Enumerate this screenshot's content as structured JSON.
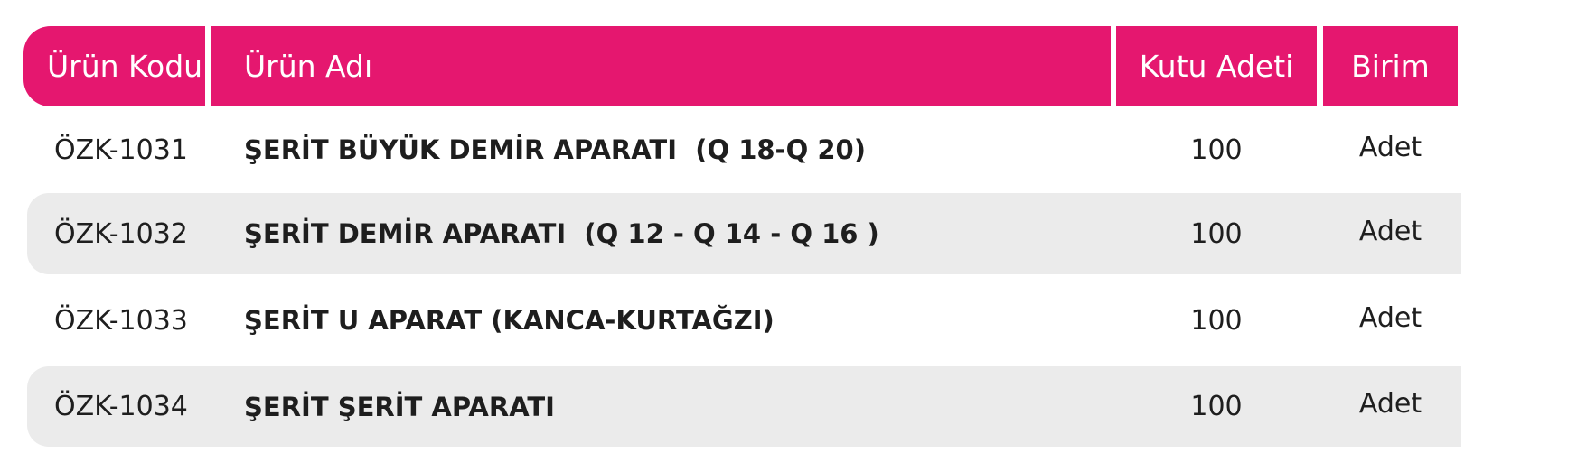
{
  "table": {
    "header_color": "#e5176f",
    "columns": [
      "Ürün Kodu",
      "Ürün Adı",
      "Kutu Adeti",
      "Birim"
    ],
    "rows": [
      {
        "code": "ÖZK-1031",
        "name": "ŞERİT BÜYÜK DEMİR APARATI  (Q 18-Q 20)",
        "box_qty": "100",
        "unit": "Adet"
      },
      {
        "code": "ÖZK-1032",
        "name": "ŞERİT DEMİR APARATI  (Q 12 - Q 14 - Q 16 )",
        "box_qty": "100",
        "unit": "Adet"
      },
      {
        "code": "ÖZK-1033",
        "name": "ŞERİT U APARAT (KANCA-KURTAĞZI)",
        "box_qty": "100",
        "unit": "Adet"
      },
      {
        "code": "ÖZK-1034",
        "name": "ŞERİT ŞERİT APARATI",
        "box_qty": "100",
        "unit": "Adet"
      }
    ]
  }
}
